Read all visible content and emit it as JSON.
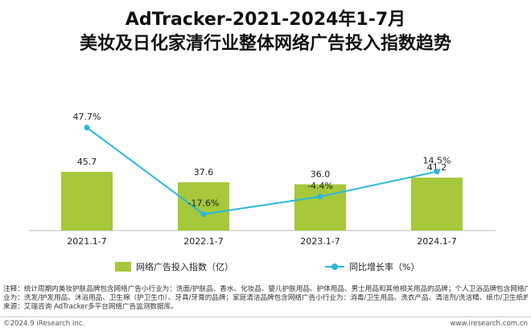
{
  "header": {
    "title_line1": "AdTracker-2021-2024年1-7月",
    "title_line2": "美妆及日化家清行业整体网络广告投入指数趋势"
  },
  "chart_data": {
    "type": "bar",
    "categories": [
      "2021.1-7",
      "2022.1-7",
      "2023.1-7",
      "2024.1-7"
    ],
    "series": [
      {
        "name": "网络广告投入指数（亿）",
        "type": "bar",
        "values": [
          45.7,
          37.6,
          36.0,
          41.2
        ],
        "labels": [
          "45.7",
          "37.6",
          "36.0",
          "41.2"
        ],
        "color": "#a6c83a"
      },
      {
        "name": "同比增长率（%）",
        "type": "line",
        "values": [
          47.7,
          -17.6,
          -4.4,
          14.5
        ],
        "labels": [
          "47.7%",
          "-17.6%",
          "-4.4%",
          "14.5%"
        ],
        "color": "#29b8dd"
      }
    ],
    "bar_axis_range": [
      0,
      80
    ],
    "line_axis_range": [
      -60,
      90
    ],
    "grid": false,
    "legend": "bottom"
  },
  "notes": {
    "line1": "注释：统计周期内美妆护肤品牌包含网络广告小行业为：洗面/护肤品、香水、化妆品、婴儿护肤用品、护体用品、男士用品和其他相关用品的品牌；个人卫浴品牌包含网络广告小行",
    "line2": "业为：洗发/护发用品、沐浴用品、卫生棉（护卫生巾）、牙具/牙膏的品牌；家庭清洁品牌包含网络广告小行业为：消毒/卫生用品、洗衣产品、清洁剂/洗洁精、纸巾/卫生纸的品牌。",
    "line3": "来源：艾瑞咨询 AdTracker多平台网络广告监测数据库。"
  },
  "footer": {
    "left": "©2024.9 iResearch Inc.",
    "right": "www.iresearch.com.cn"
  }
}
